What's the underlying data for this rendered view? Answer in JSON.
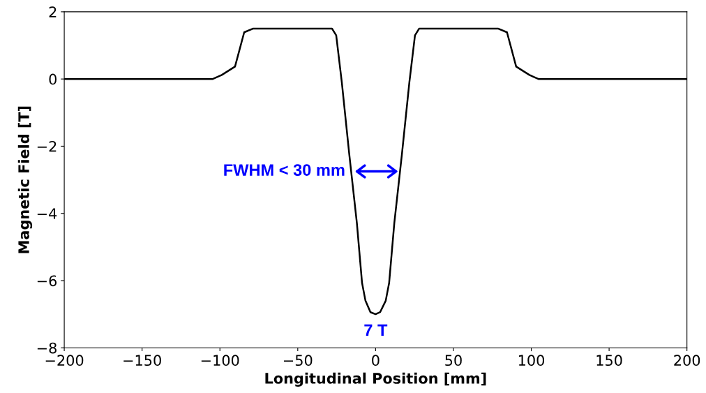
{
  "chart_data": {
    "type": "line",
    "xlabel": "Longitudinal Position [mm]",
    "ylabel": "Magnetic Field [T]",
    "x": [
      -200,
      -150,
      -104.6,
      -98.8,
      -90.3,
      -84.4,
      -78.6,
      -28,
      -25.3,
      -21.7,
      -17,
      -12,
      -8.7,
      -6.5,
      -3.3,
      0,
      2.9,
      6.5,
      8.7,
      12,
      17,
      21.7,
      25.3,
      28,
      78.6,
      84.4,
      90.3,
      98.8,
      104.6,
      150,
      200
    ],
    "series": [
      {
        "color": "#000000",
        "values": [
          0,
          0,
          0,
          0.12,
          0.37,
          1.39,
          1.5,
          1.5,
          1.3,
          -0.1,
          -2.2,
          -4.3,
          -6.07,
          -6.6,
          -6.94,
          -7.0,
          -6.94,
          -6.6,
          -6.07,
          -4.3,
          -2.2,
          -0.1,
          1.3,
          1.5,
          1.5,
          1.39,
          0.37,
          0.12,
          0,
          0,
          0
        ]
      }
    ],
    "xlim": [
      -200,
      200
    ],
    "ylim": [
      -8,
      2
    ],
    "xticks": [
      -200,
      -150,
      -100,
      -50,
      0,
      50,
      100,
      150,
      200
    ],
    "yticks": [
      -8,
      -6,
      -4,
      -2,
      0,
      2
    ],
    "annotations": [
      {
        "text": "FWHM < 30 mm",
        "x": -14.5,
        "y": -2.75
      },
      {
        "text": "7 T",
        "x": 0,
        "y": -7.0
      }
    ],
    "grid": false,
    "legend": false,
    "marker": "none",
    "line_style": "solid"
  }
}
